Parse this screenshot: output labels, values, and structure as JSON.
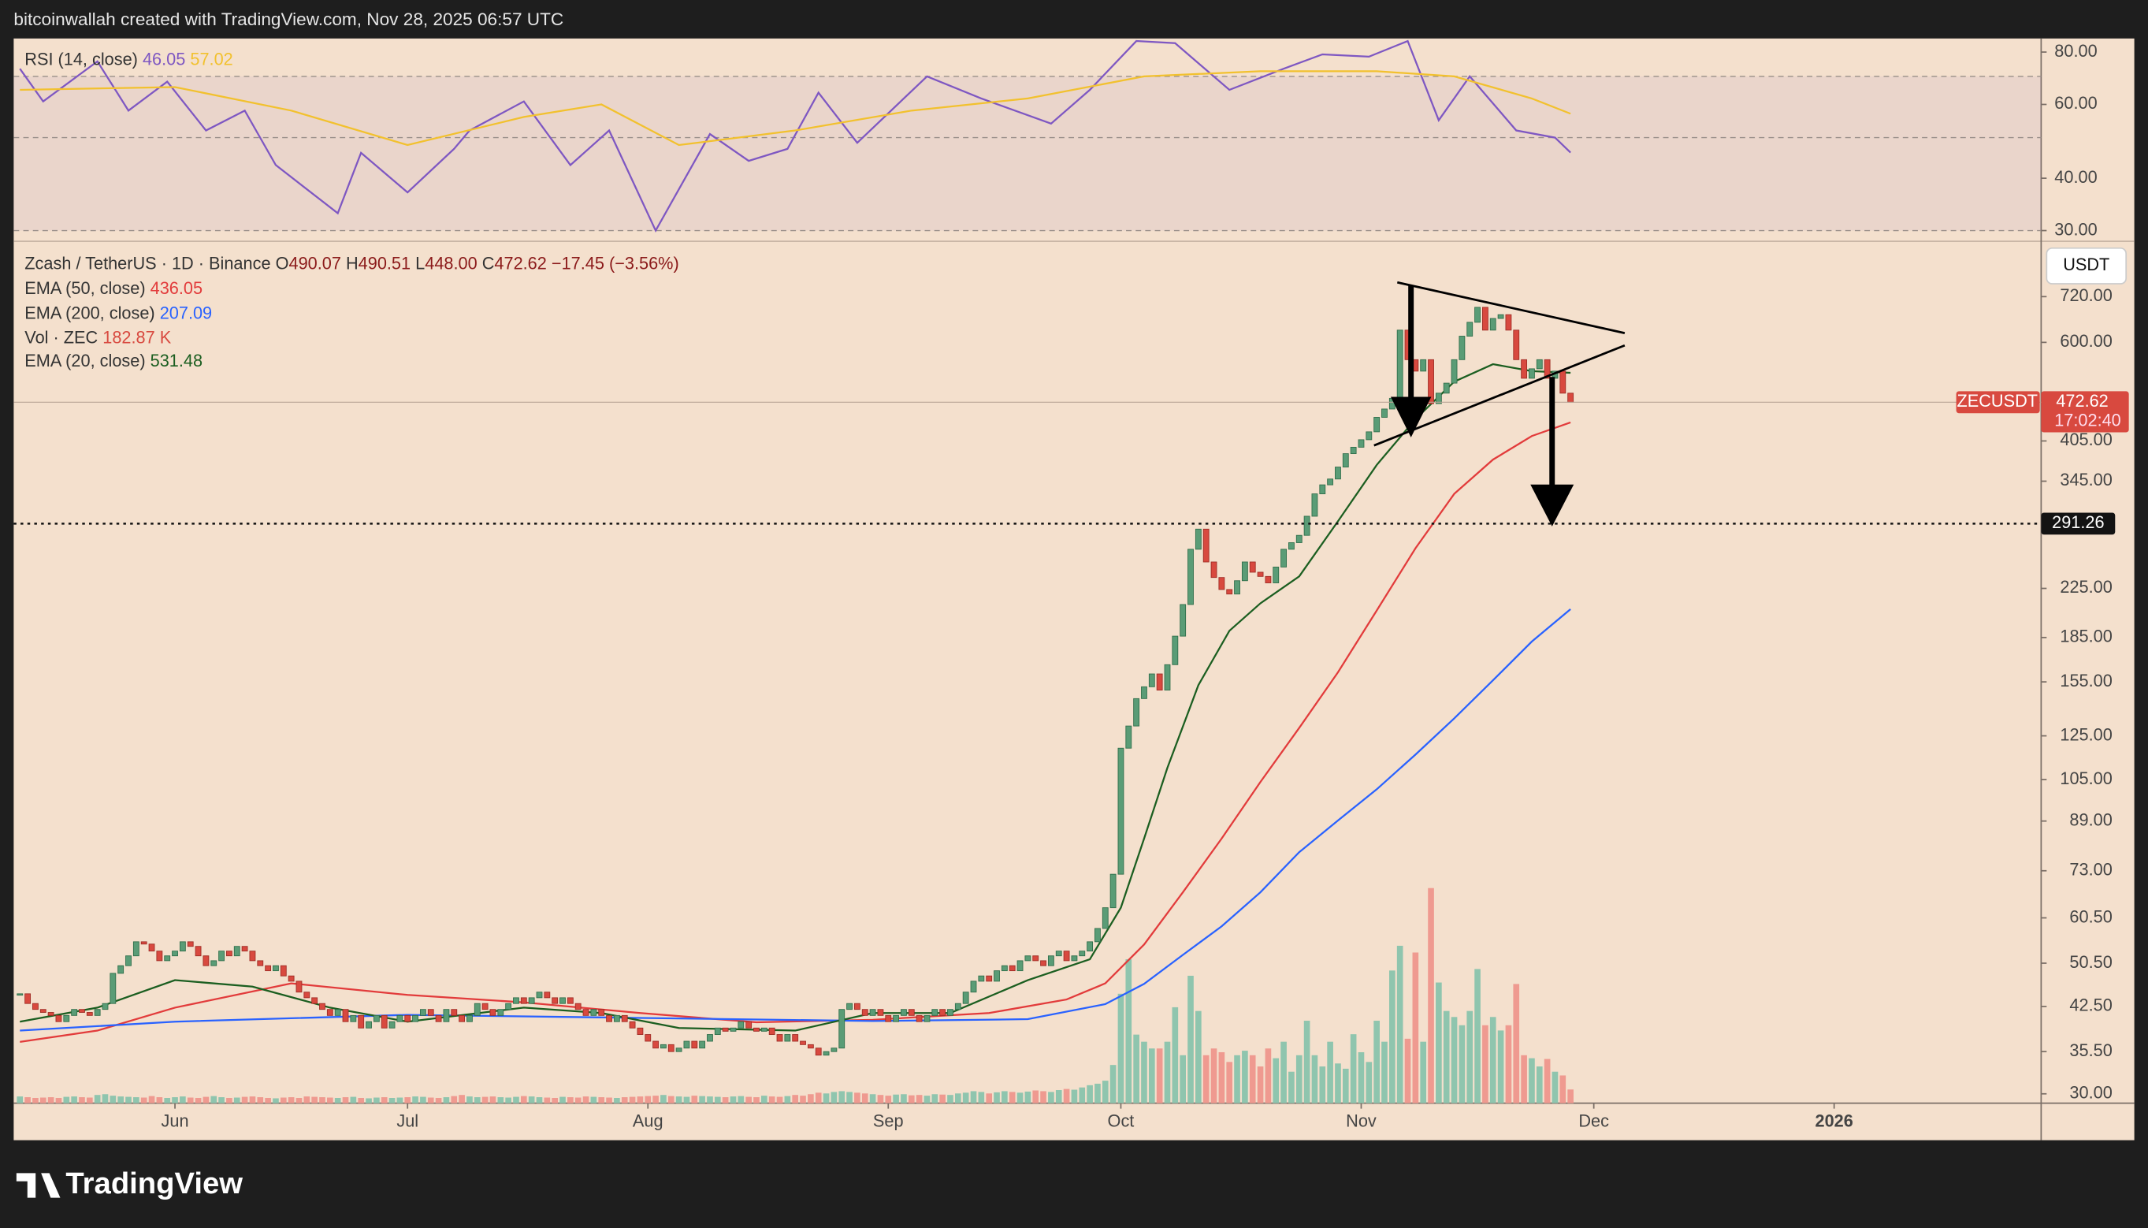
{
  "header": {
    "text": "bitcoinwallah created with TradingView.com, Nov 28, 2025 06:57 UTC"
  },
  "footer_brand": "TradingView",
  "chart_data": {
    "type": "candlestick",
    "title": "Zcash / TetherUS · 1D · Binance",
    "ohlc_letters": [
      "O",
      "H",
      "L",
      "C"
    ],
    "last_bar": {
      "open": 490.07,
      "high": 490.51,
      "low": {
        "value": 448,
        "label": "448.00"
      },
      "change": "−17.45 (−3.56%)"
    },
    "symbol": "ZECUSDT",
    "countdown": "17:02:40",
    "currency": "USDT",
    "log_scale": true,
    "xlim": [
      -20.8,
      240.7
    ],
    "ylim": [
      28.9,
      888
    ],
    "xticks": [
      {
        "value": 0,
        "label": "Jun"
      },
      {
        "value": 30,
        "label": "Jul"
      },
      {
        "value": 61,
        "label": "Aug"
      },
      {
        "value": 92,
        "label": "Sep"
      },
      {
        "value": 122,
        "label": "Oct"
      },
      {
        "value": 153,
        "label": "Nov"
      },
      {
        "value": 183,
        "label": "Dec"
      },
      {
        "value": 214,
        "label": "2026"
      }
    ],
    "yticks": [
      {
        "value": 720,
        "label": "720.00"
      },
      {
        "value": 600,
        "label": "600.00"
      },
      {
        "value": 405,
        "label": "405.00"
      },
      {
        "value": 345,
        "label": "345.00"
      },
      {
        "value": 225,
        "label": "225.00"
      },
      {
        "value": 185,
        "label": "185.00"
      },
      {
        "value": 155,
        "label": "155.00"
      },
      {
        "value": 125,
        "label": "125.00"
      },
      {
        "value": 105,
        "label": "105.00"
      },
      {
        "value": 89,
        "label": "89.00"
      },
      {
        "value": 73,
        "label": "73.00"
      },
      {
        "value": 60.5,
        "label": "60.50"
      },
      {
        "value": 50.5,
        "label": "50.50"
      },
      {
        "value": 42.5,
        "label": "42.50"
      },
      {
        "value": 35.5,
        "label": "35.50"
      },
      {
        "value": 30,
        "label": "30.00"
      }
    ],
    "hline": 291.26,
    "up_color": "#5a9c76",
    "down_color": "#d8493f",
    "x": [
      -20,
      -19,
      -18,
      -17,
      -16,
      -15,
      -14,
      -13,
      -12,
      -11,
      -10,
      -9,
      -8,
      -7,
      -6,
      -5,
      -4,
      -3,
      -2,
      -1,
      0,
      1,
      2,
      3,
      4,
      5,
      6,
      7,
      8,
      9,
      10,
      11,
      12,
      13,
      14,
      15,
      16,
      17,
      18,
      19,
      20,
      21,
      22,
      23,
      24,
      25,
      26,
      27,
      28,
      29,
      30,
      31,
      32,
      33,
      34,
      35,
      36,
      37,
      38,
      39,
      40,
      41,
      42,
      43,
      44,
      45,
      46,
      47,
      48,
      49,
      50,
      51,
      52,
      53,
      54,
      55,
      56,
      57,
      58,
      59,
      60,
      61,
      62,
      63,
      64,
      65,
      66,
      67,
      68,
      69,
      70,
      71,
      72,
      73,
      74,
      75,
      76,
      77,
      78,
      79,
      80,
      81,
      82,
      83,
      84,
      85,
      86,
      87,
      88,
      89,
      90,
      91,
      92,
      93,
      94,
      95,
      96,
      97,
      98,
      99,
      100,
      101,
      102,
      103,
      104,
      105,
      106,
      107,
      108,
      109,
      110,
      111,
      112,
      113,
      114,
      115,
      116,
      117,
      118,
      119,
      120,
      121,
      122,
      123,
      124,
      125,
      126,
      127,
      128,
      129,
      130,
      131,
      132,
      133,
      134,
      135,
      136,
      137,
      138,
      139,
      140,
      141,
      142,
      143,
      144,
      145,
      146,
      147,
      148,
      149,
      150,
      151,
      152,
      153,
      154,
      155,
      156,
      157,
      158,
      159,
      160,
      161,
      162,
      163,
      164,
      165,
      166,
      167,
      168,
      169,
      170,
      171,
      172,
      173,
      174,
      175,
      176,
      177,
      178,
      179,
      180
    ],
    "close": [
      44.7,
      43,
      42,
      41.5,
      41,
      40,
      41,
      42,
      41.5,
      41,
      42,
      43,
      48.5,
      50,
      52,
      55,
      54.5,
      53,
      51,
      52,
      53,
      55,
      54,
      52,
      50,
      51,
      53,
      52,
      54,
      53,
      51,
      50,
      49,
      50,
      48,
      47,
      45,
      44,
      43,
      42,
      41,
      42,
      40,
      41,
      39,
      40,
      41,
      39,
      40,
      41,
      40,
      41,
      42,
      41,
      40,
      42,
      41,
      40,
      41,
      43,
      42,
      41,
      42,
      43,
      44,
      43,
      44,
      45,
      44,
      43,
      44,
      43,
      42,
      41,
      42,
      41,
      40,
      41,
      40,
      39,
      38,
      37,
      36,
      36.5,
      35.5,
      36,
      37,
      36,
      37,
      38,
      39,
      38.5,
      39,
      40,
      39,
      38.5,
      39,
      38,
      37,
      38,
      37,
      36.5,
      36,
      35,
      35.5,
      36,
      42,
      43,
      42,
      41,
      42,
      41,
      40,
      41,
      42,
      41,
      40,
      41,
      42,
      41,
      42,
      43,
      45,
      47,
      48,
      47,
      49,
      50,
      49,
      51,
      52,
      51,
      50,
      52,
      53,
      51,
      52,
      53,
      55,
      58,
      63,
      72,
      119,
      130,
      145,
      152,
      160,
      150,
      166,
      186,
      211,
      263,
      285,
      250,
      235,
      224,
      220,
      232,
      250,
      240,
      236,
      230,
      245,
      263,
      270,
      278,
      300,
      328,
      340,
      348,
      365,
      385,
      395,
      407,
      420,
      445,
      460,
      480,
      630,
      560,
      535,
      560,
      470,
      490,
      510,
      560,
      615,
      650,
      690,
      630,
      660,
      670,
      630,
      560,
      520,
      540,
      560,
      520,
      535,
      490,
      472.62
    ],
    "volume": {
      "name": "Vol · ZEC",
      "unit": "K",
      "up_color": "#8fc5ae",
      "down_color": "#ef9a90",
      "values": [
        90,
        80,
        70,
        75,
        80,
        70,
        85,
        90,
        80,
        75,
        110,
        120,
        100,
        90,
        85,
        80,
        75,
        95,
        80,
        70,
        80,
        90,
        75,
        70,
        85,
        95,
        80,
        70,
        75,
        85,
        90,
        80,
        70,
        65,
        75,
        80,
        70,
        90,
        85,
        80,
        75,
        70,
        80,
        85,
        70,
        65,
        75,
        80,
        70,
        75,
        80,
        90,
        85,
        75,
        70,
        80,
        95,
        110,
        90,
        80,
        85,
        90,
        80,
        75,
        85,
        95,
        90,
        80,
        75,
        70,
        85,
        80,
        75,
        90,
        85,
        80,
        75,
        70,
        80,
        85,
        90,
        95,
        100,
        110,
        95,
        90,
        85,
        100,
        95,
        90,
        85,
        80,
        90,
        95,
        85,
        80,
        100,
        90,
        85,
        95,
        110,
        100,
        120,
        140,
        130,
        150,
        160,
        150,
        140,
        130,
        120,
        110,
        100,
        115,
        120,
        105,
        110,
        100,
        120,
        115,
        110,
        130,
        140,
        160,
        150,
        130,
        145,
        160,
        150,
        140,
        155,
        170,
        160,
        150,
        175,
        190,
        180,
        210,
        240,
        260,
        300,
        510,
        1460,
        1920,
        915,
        820,
        730,
        730,
        820,
        1280,
        640,
        1700,
        1230,
        640,
        730,
        680,
        550,
        640,
        700,
        640,
        490,
        730,
        600,
        820,
        420,
        640,
        1100,
        640,
        490,
        820,
        530,
        460,
        920,
        680,
        550,
        1100,
        820,
        1770,
        2100,
        860,
        2010,
        820,
        2870,
        1610,
        1230,
        1150,
        1040,
        1230,
        1790,
        1040,
        1150,
        970,
        1040,
        1590,
        640,
        600,
        490,
        590,
        420,
        370,
        182.87
      ]
    },
    "series": [
      {
        "name": "EMA (50, close)",
        "color": "#e23b3b",
        "x": [
          -20,
          -10,
          0,
          15,
          30,
          45,
          60,
          75,
          90,
          105,
          115,
          120,
          125,
          130,
          135,
          140,
          145,
          150,
          155,
          160,
          165,
          170,
          175,
          180
        ],
        "values": [
          36.9,
          38.6,
          42.3,
          46.6,
          44.5,
          43.2,
          41.4,
          39.9,
          40.3,
          41.4,
          43.7,
          46.6,
          54.4,
          67,
          83,
          104,
          129,
          161,
          206,
          264,
          328,
          376,
          413,
          436.05
        ]
      },
      {
        "name": "EMA (200, close)",
        "color": "#2962ff",
        "x": [
          -20,
          0,
          30,
          60,
          90,
          110,
          120,
          125,
          130,
          135,
          140,
          145,
          150,
          155,
          160,
          165,
          170,
          175,
          180
        ],
        "values": [
          38.6,
          40,
          41.1,
          40.6,
          40.1,
          40.4,
          42.9,
          46.5,
          52.2,
          58.5,
          67,
          78.6,
          89.2,
          101,
          116,
          134,
          156,
          182,
          207.09
        ]
      },
      {
        "name": "EMA (20, close)",
        "color": "#1b5e20",
        "x": [
          -20,
          -10,
          0,
          10,
          20,
          30,
          45,
          55,
          65,
          80,
          90,
          100,
          110,
          118,
          122,
          125,
          128,
          132,
          136,
          140,
          145,
          150,
          155,
          160,
          165,
          170,
          175,
          180
        ],
        "values": [
          40,
          42.3,
          47.2,
          46,
          42.3,
          40,
          42.3,
          41.4,
          39,
          38.6,
          41.4,
          41.4,
          47.2,
          51.3,
          63,
          83,
          110,
          153,
          190,
          212,
          236,
          294,
          368,
          442,
          513,
          550,
          535,
          531.48
        ]
      }
    ],
    "rsi": {
      "title": "RSI (14, close)",
      "log_scale": true,
      "ylim": [
        28.5,
        86.2
      ],
      "yticks": [
        {
          "value": 80,
          "label": "80.00"
        },
        {
          "value": 60,
          "label": "60.00"
        },
        {
          "value": 40,
          "label": "40.00"
        },
        {
          "value": 30,
          "label": "30.00"
        }
      ],
      "bands": [
        30,
        50,
        70
      ],
      "series": [
        {
          "color": "#7e57c2",
          "x": [
            -20,
            -17,
            -10,
            -6,
            -1,
            4,
            9,
            13,
            21,
            24,
            30,
            36,
            38,
            45,
            51,
            56,
            62,
            69,
            74,
            79,
            83,
            88,
            97,
            104,
            113,
            118,
            124,
            129,
            136,
            143,
            148,
            154,
            159,
            163,
            167,
            173,
            178,
            180
          ],
          "values": [
            73,
            61,
            76,
            58,
            68,
            52,
            58,
            43,
            33,
            46,
            37,
            47,
            52,
            61,
            43,
            52,
            30,
            51,
            44,
            47,
            64,
            48.6,
            70,
            62,
            54,
            65,
            85,
            84,
            65,
            73,
            79,
            78,
            85,
            55,
            70,
            52,
            50,
            46.05
          ]
        },
        {
          "color": "#f2c12e",
          "x": [
            -20,
            0,
            15,
            30,
            45,
            55,
            65,
            80,
            95,
            110,
            125,
            140,
            155,
            165,
            175,
            180
          ],
          "values": [
            65,
            66,
            58,
            48,
            56,
            60,
            48,
            52,
            58,
            62,
            70,
            72,
            72,
            70,
            62,
            57.02
          ]
        }
      ]
    }
  }
}
